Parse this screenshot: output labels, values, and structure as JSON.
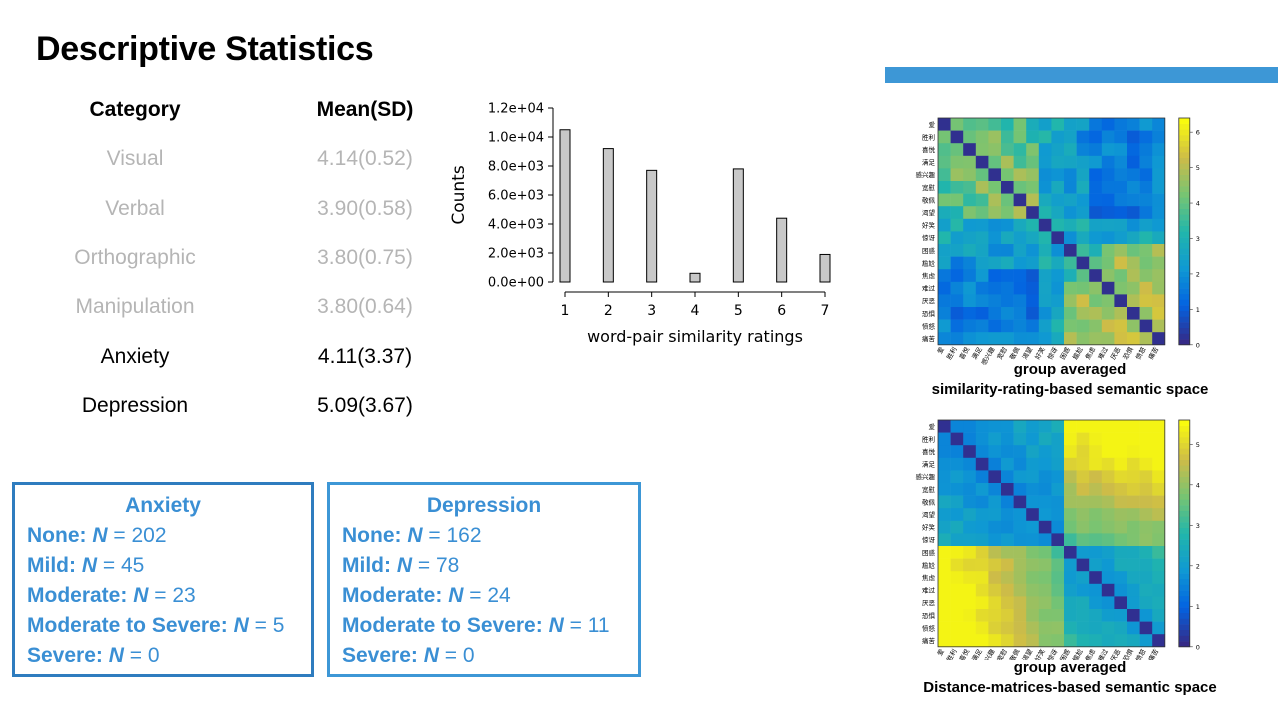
{
  "slide": {
    "title": "Descriptive Statistics",
    "accent_color": "#3d97d6"
  },
  "stats_table": {
    "header": {
      "category": "Category",
      "mean_sd": "Mean(SD)"
    },
    "rows": [
      {
        "category": "Visual",
        "mean_sd": "4.14(0.52)"
      },
      {
        "category": "Verbal",
        "mean_sd": "3.90(0.58)"
      },
      {
        "category": "Orthographic",
        "mean_sd": "3.80(0.75)"
      },
      {
        "category": "Manipulation",
        "mean_sd": "3.80(0.64)"
      },
      {
        "category": "Anxiety",
        "mean_sd": "4.11(3.37)"
      },
      {
        "category": "Depression",
        "mean_sd": "5.09(3.67)"
      }
    ]
  },
  "severity": {
    "anxiety": {
      "title": "Anxiety",
      "levels": [
        {
          "label": "None:",
          "n_label": "N",
          "value": "= 202"
        },
        {
          "label": "Mild:",
          "n_label": "N",
          "value": "= 45"
        },
        {
          "label": "Moderate:",
          "n_label": "N",
          "value": "= 23"
        },
        {
          "label": "Moderate to Severe:",
          "n_label": "N",
          "value": "= 5"
        },
        {
          "label": "Severe:",
          "n_label": "N",
          "value": "= 0"
        }
      ]
    },
    "depression": {
      "title": "Depression",
      "levels": [
        {
          "label": "None:",
          "n_label": "N",
          "value": "= 162"
        },
        {
          "label": "Mild:",
          "n_label": "N",
          "value": "= 78"
        },
        {
          "label": "Moderate:",
          "n_label": "N",
          "value": "= 24"
        },
        {
          "label": "Moderate to Severe:",
          "n_label": "N",
          "value": "= 11"
        },
        {
          "label": "Severe:",
          "n_label": "N",
          "value": "= 0"
        }
      ]
    }
  },
  "captions": {
    "heatmap1": [
      "group averaged",
      "similarity-rating-based semantic space"
    ],
    "heatmap2": [
      "group averaged",
      "Distance-matrices-based semantic space"
    ]
  },
  "chart_data": [
    {
      "type": "bar",
      "categories": [
        "1",
        "2",
        "3",
        "4",
        "5",
        "6",
        "7"
      ],
      "values": [
        10500,
        9200,
        7700,
        600,
        7800,
        4400,
        1900
      ],
      "xlabel": "word-pair similarity ratings",
      "ylabel": "Counts",
      "ylim": [
        0,
        12000
      ],
      "yticks": [
        "0.0e+00",
        "2.0e+03",
        "4.0e+03",
        "6.0e+03",
        "8.0e+03",
        "1.0e+04",
        "1.2e+04"
      ],
      "bar_color": "#c8c8c8",
      "grid": false
    },
    {
      "type": "heatmap",
      "labels": [
        "爱",
        "胜利",
        "喜悦",
        "满足",
        "感兴趣",
        "宽慰",
        "敬佩",
        "渴望",
        "好笑",
        "惊讶",
        "困惑",
        "尴尬",
        "焦虑",
        "难过",
        "厌恶",
        "恐惧",
        "愤怒",
        "痛苦"
      ],
      "colorbar_ticks": [
        "0",
        "1",
        "2",
        "3",
        "4",
        "5",
        "6"
      ],
      "range": [
        0,
        6.4
      ],
      "colormap": "parula",
      "legend": "right"
    },
    {
      "type": "heatmap",
      "labels": [
        "爱",
        "胜利",
        "喜悦",
        "满足",
        "感兴趣",
        "宽慰",
        "敬佩",
        "渴望",
        "好笑",
        "惊讶",
        "困惑",
        "尴尬",
        "焦虑",
        "难过",
        "厌恶",
        "恐惧",
        "愤怒",
        "痛苦"
      ],
      "colorbar_ticks": [
        "0",
        "1",
        "2",
        "3",
        "4",
        "5"
      ],
      "range": [
        0,
        5.6
      ],
      "colormap": "parula",
      "legend": "right"
    }
  ]
}
